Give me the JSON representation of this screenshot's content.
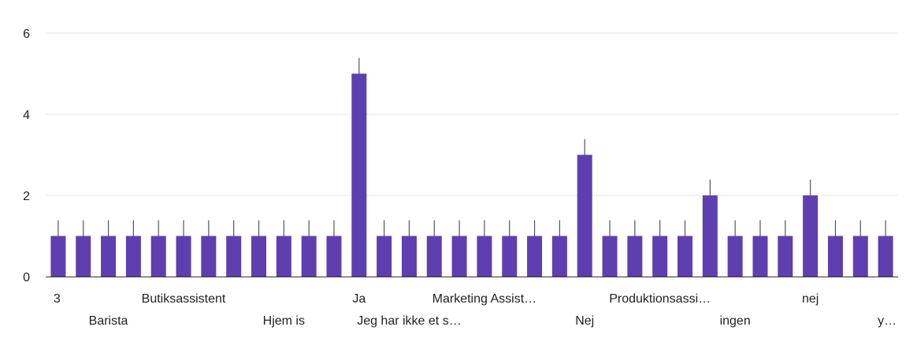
{
  "chart_data": {
    "type": "bar",
    "bar_color": "#5e3fb0",
    "error_bar_color": "#555555",
    "grid": true,
    "ylim": [
      0,
      6
    ],
    "yticks": [
      0,
      2,
      4,
      6
    ],
    "values": [
      1,
      1,
      1,
      1,
      1,
      1,
      1,
      1,
      1,
      1,
      1,
      1,
      5,
      1,
      1,
      1,
      1,
      1,
      1,
      1,
      1,
      3,
      1,
      1,
      1,
      1,
      2,
      1,
      1,
      1,
      2,
      1,
      1,
      1
    ],
    "category_labels": [
      {
        "index": 0,
        "text": "3",
        "row": 1
      },
      {
        "index": 2,
        "text": "Barista",
        "row": 2
      },
      {
        "index": 5,
        "text": "Butiksassistent",
        "row": 1
      },
      {
        "index": 9,
        "text": "Hjem is",
        "row": 2
      },
      {
        "index": 12,
        "text": "Ja",
        "row": 1
      },
      {
        "index": 14,
        "text": "Jeg har ikke et s…",
        "row": 2
      },
      {
        "index": 17,
        "text": "Marketing Assist…",
        "row": 1
      },
      {
        "index": 21,
        "text": "Nej",
        "row": 2
      },
      {
        "index": 24,
        "text": "Produktionsassi…",
        "row": 1
      },
      {
        "index": 27,
        "text": "ingen",
        "row": 2
      },
      {
        "index": 30,
        "text": "nej",
        "row": 1
      },
      {
        "index": 33,
        "text": "y…",
        "row": 2
      }
    ]
  }
}
